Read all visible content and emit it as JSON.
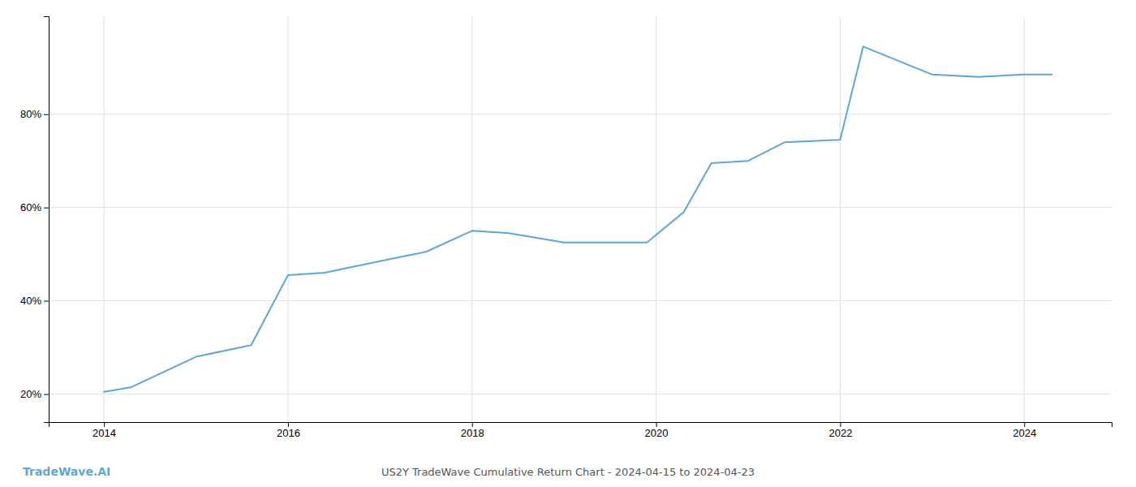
{
  "chart_data": {
    "type": "line",
    "title": "US2Y TradeWave Cumulative Return Chart - 2024-04-15 to 2024-04-23",
    "annotations": [
      "TradeWave.AI"
    ],
    "color": "#5ba8d4",
    "x": [
      2014.0,
      2014.3,
      2015.0,
      2015.6,
      2016.0,
      2016.4,
      2017.0,
      2017.5,
      2018.0,
      2018.4,
      2019.0,
      2019.5,
      2019.9,
      2020.3,
      2020.6,
      2021.0,
      2021.4,
      2022.0,
      2022.25,
      2023.0,
      2023.5,
      2024.0,
      2024.3
    ],
    "values": [
      20.5,
      21.5,
      28.0,
      30.5,
      45.5,
      46.0,
      48.5,
      50.5,
      55.0,
      54.5,
      52.5,
      52.5,
      52.5,
      59.0,
      69.5,
      70.0,
      74.0,
      74.5,
      94.5,
      88.5,
      88.0,
      88.5,
      88.5
    ],
    "xlim": [
      2013.4,
      2024.95
    ],
    "ylim": [
      14,
      101
    ],
    "xticks": [
      2014,
      2016,
      2018,
      2020,
      2022,
      2024
    ],
    "yticks": [
      {
        "value": 20,
        "label": "20%"
      },
      {
        "value": 40,
        "label": "40%"
      },
      {
        "value": 60,
        "label": "60%"
      },
      {
        "value": 80,
        "label": "80%"
      }
    ],
    "grid": true
  }
}
